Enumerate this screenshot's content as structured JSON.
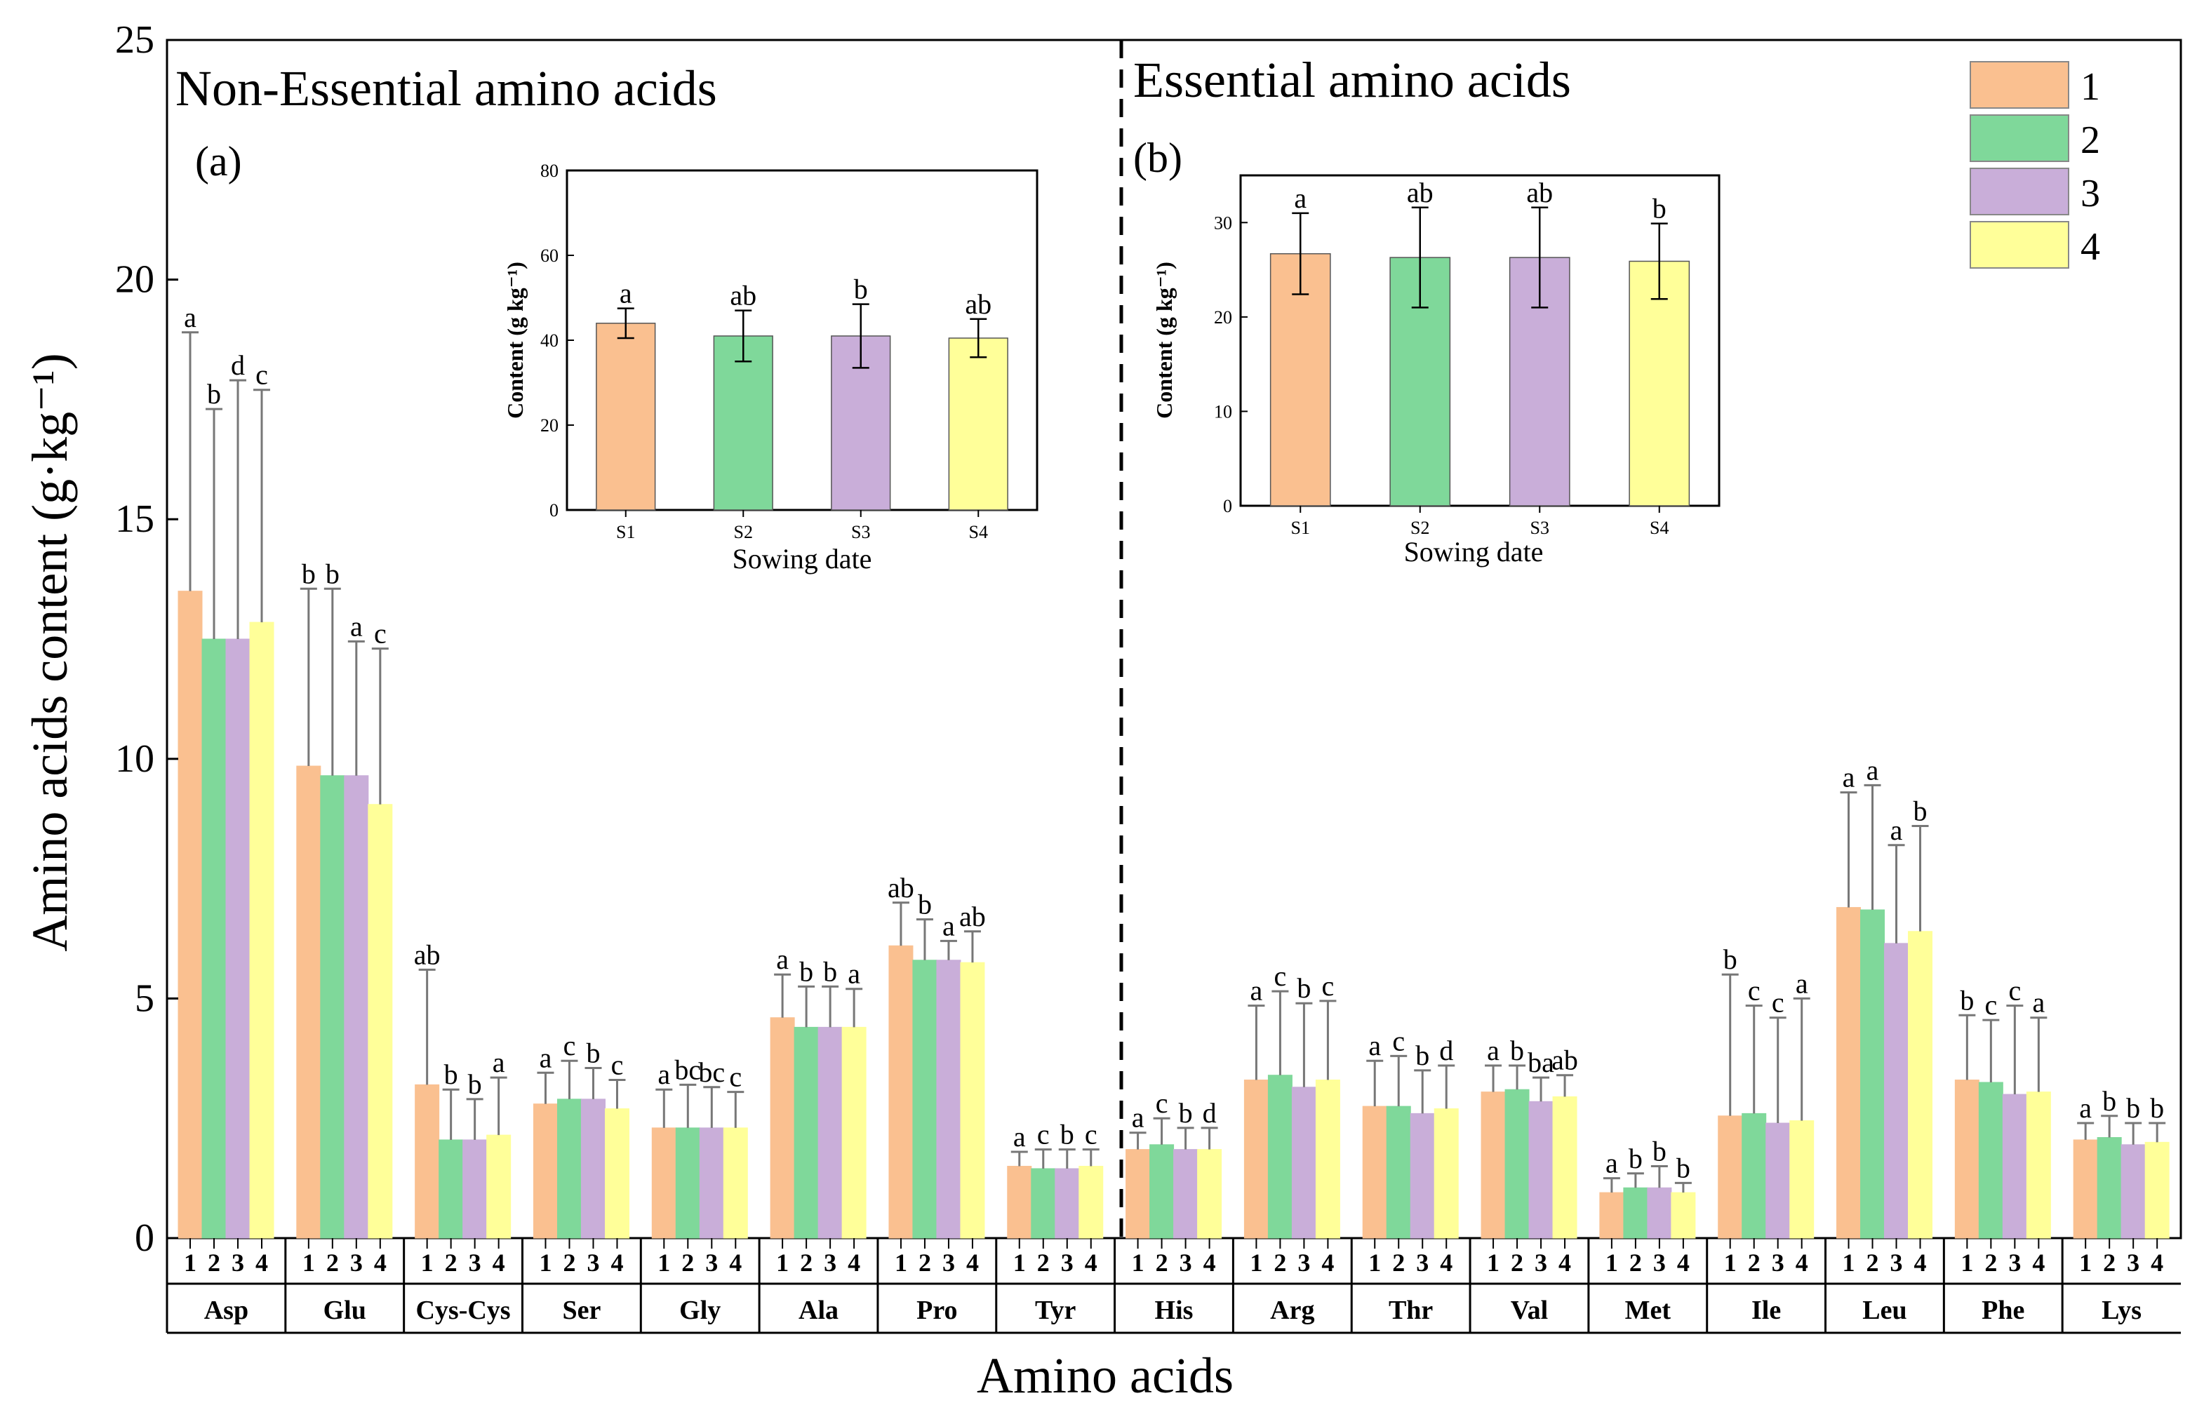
{
  "chart_data": {
    "type": "bar",
    "ylabel": "Amino acids content (g·kg⁻¹)",
    "xlabel": "Amino acids",
    "ylim": [
      0,
      25
    ],
    "yticks": [
      0,
      5,
      10,
      15,
      20,
      25
    ],
    "panels": [
      {
        "title": "Non-Essential amino acids",
        "letter": "(a)"
      },
      {
        "title": "Essential amino acids",
        "letter": "(b)"
      }
    ],
    "legend": [
      {
        "label": "1",
        "color": "#FAC090"
      },
      {
        "label": "2",
        "color": "#7FD89A"
      },
      {
        "label": "3",
        "color": "#C9AED9"
      },
      {
        "label": "4",
        "color": "#FFFF99"
      }
    ],
    "series_numbers": [
      "1",
      "2",
      "3",
      "4"
    ],
    "groups": [
      {
        "name": "Asp",
        "values": [
          13.5,
          12.5,
          12.5,
          12.85
        ],
        "errors": [
          5.4,
          4.8,
          5.4,
          4.85
        ],
        "letters": [
          "a",
          "b",
          "d",
          "c"
        ]
      },
      {
        "name": "Glu",
        "values": [
          9.85,
          9.65,
          9.65,
          9.05
        ],
        "errors": [
          3.7,
          3.9,
          2.8,
          3.25
        ],
        "letters": [
          "b",
          "b",
          "a",
          "c"
        ]
      },
      {
        "name": "Cys-Cys",
        "values": [
          3.2,
          2.05,
          2.05,
          2.15
        ],
        "errors": [
          2.4,
          1.05,
          0.85,
          1.2
        ],
        "letters": [
          "ab",
          "b",
          "b",
          "a"
        ]
      },
      {
        "name": "Ser",
        "values": [
          2.8,
          2.9,
          2.9,
          2.7
        ],
        "errors": [
          0.65,
          0.8,
          0.65,
          0.6
        ],
        "letters": [
          "a",
          "c",
          "b",
          "c"
        ]
      },
      {
        "name": "Gly",
        "values": [
          2.3,
          2.3,
          2.3,
          2.3
        ],
        "errors": [
          0.8,
          0.9,
          0.85,
          0.75
        ],
        "letters": [
          "a",
          "bc",
          "bc",
          "c"
        ]
      },
      {
        "name": "Ala",
        "values": [
          4.6,
          4.4,
          4.4,
          4.4
        ],
        "errors": [
          0.9,
          0.85,
          0.85,
          0.8
        ],
        "letters": [
          "a",
          "b",
          "b",
          "a"
        ]
      },
      {
        "name": "Pro",
        "values": [
          6.1,
          5.8,
          5.8,
          5.75
        ],
        "errors": [
          0.9,
          0.85,
          0.4,
          0.65
        ],
        "letters": [
          "ab",
          "b",
          "a",
          "ab"
        ]
      },
      {
        "name": "Tyr",
        "values": [
          1.5,
          1.45,
          1.45,
          1.5
        ],
        "errors": [
          0.3,
          0.4,
          0.4,
          0.35
        ],
        "letters": [
          "a",
          "c",
          "b",
          "c"
        ]
      },
      {
        "name": "His",
        "values": [
          1.85,
          1.95,
          1.85,
          1.85
        ],
        "errors": [
          0.35,
          0.55,
          0.45,
          0.45
        ],
        "letters": [
          "a",
          "c",
          "b",
          "d"
        ]
      },
      {
        "name": "Arg",
        "values": [
          3.3,
          3.4,
          3.15,
          3.3
        ],
        "errors": [
          1.55,
          1.75,
          1.75,
          1.65
        ],
        "letters": [
          "a",
          "c",
          "b",
          "c"
        ]
      },
      {
        "name": "Thr",
        "values": [
          2.75,
          2.75,
          2.6,
          2.7
        ],
        "errors": [
          0.95,
          1.05,
          0.9,
          0.9
        ],
        "letters": [
          "a",
          "c",
          "b",
          "d"
        ]
      },
      {
        "name": "Val",
        "values": [
          3.05,
          3.1,
          2.85,
          2.95
        ],
        "errors": [
          0.55,
          0.5,
          0.5,
          0.45
        ],
        "letters": [
          "a",
          "b",
          "ba",
          "ab"
        ]
      },
      {
        "name": "Met",
        "values": [
          0.95,
          1.05,
          1.05,
          0.95
        ],
        "errors": [
          0.3,
          0.3,
          0.45,
          0.2
        ],
        "letters": [
          "a",
          "b",
          "b",
          "b"
        ]
      },
      {
        "name": "Ile",
        "values": [
          2.55,
          2.6,
          2.4,
          2.45
        ],
        "errors": [
          2.95,
          2.25,
          2.2,
          2.55
        ],
        "letters": [
          "b",
          "c",
          "c",
          "a"
        ]
      },
      {
        "name": "Leu",
        "values": [
          6.9,
          6.85,
          6.15,
          6.4
        ],
        "errors": [
          2.4,
          2.6,
          2.05,
          2.2
        ],
        "letters": [
          "a",
          "a",
          "a",
          "b"
        ]
      },
      {
        "name": "Phe",
        "values": [
          3.3,
          3.25,
          3.0,
          3.05
        ],
        "errors": [
          1.35,
          1.3,
          1.85,
          1.55
        ],
        "letters": [
          "b",
          "c",
          "c",
          "a"
        ]
      },
      {
        "name": "Lys",
        "values": [
          2.05,
          2.1,
          1.95,
          2.0
        ],
        "errors": [
          0.35,
          0.45,
          0.45,
          0.4
        ],
        "letters": [
          "a",
          "b",
          "b",
          "b"
        ]
      }
    ],
    "insets": [
      {
        "type": "bar",
        "xlabel": "Sowing date",
        "ylabel": "Content (g kg⁻¹)",
        "ylim": [
          0,
          80
        ],
        "yticks": [
          0,
          20,
          40,
          60,
          80
        ],
        "categories": [
          "S1",
          "S2",
          "S3",
          "S4"
        ],
        "values": [
          44,
          41,
          41,
          40.5
        ],
        "errors": [
          3.5,
          6,
          7.5,
          4.5
        ],
        "letters": [
          "a",
          "ab",
          "b",
          "ab"
        ]
      },
      {
        "type": "bar",
        "xlabel": "Sowing date",
        "ylabel": "Content (g kg⁻¹)",
        "ylim": [
          0,
          35
        ],
        "yticks": [
          0,
          10,
          20,
          30
        ],
        "categories": [
          "S1",
          "S2",
          "S3",
          "S4"
        ],
        "values": [
          26.7,
          26.3,
          26.3,
          25.9
        ],
        "errors": [
          4.3,
          5.3,
          5.3,
          4.0
        ],
        "letters": [
          "a",
          "ab",
          "ab",
          "b"
        ]
      }
    ]
  }
}
